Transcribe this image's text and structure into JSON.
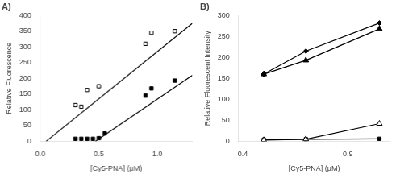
{
  "chart_data": [
    {
      "type": "scatter",
      "title": "A)",
      "xlabel": "[Cy5-PNA] (μM)",
      "ylabel": "Relative Fluorescence",
      "xlim": [
        0,
        1.3
      ],
      "ylim": [
        0,
        400
      ],
      "xticks": [
        {
          "value": 0,
          "label": "0.0"
        },
        0.5,
        {
          "value": 1.0,
          "label": "1.0"
        }
      ],
      "yticks": [
        0,
        50,
        100,
        150,
        200,
        250,
        300,
        350,
        400
      ],
      "grid": false,
      "series": [
        {
          "x": [
            0.05,
            1.3
          ],
          "values": [
            0,
            375
          ],
          "color": "black",
          "marker": "none",
          "line_style": "solid"
        },
        {
          "x": [
            0.47,
            1.3
          ],
          "values": [
            0,
            210
          ],
          "color": "black",
          "marker": "none",
          "line_style": "solid"
        },
        {
          "x": [
            0.3,
            0.35,
            0.4,
            0.5,
            0.9,
            0.95,
            1.15
          ],
          "values": [
            115,
            110,
            163,
            175,
            310,
            345,
            350
          ],
          "color": "black",
          "marker": "open_square",
          "line_style": "none"
        },
        {
          "x": [
            0.3,
            0.35,
            0.4,
            0.45,
            0.5,
            0.55,
            0.9,
            0.95,
            1.15
          ],
          "values": [
            8,
            8,
            8,
            8,
            10,
            25,
            145,
            168,
            193
          ],
          "color": "black",
          "marker": "square",
          "line_style": "none"
        }
      ]
    },
    {
      "type": "line",
      "title": "B)",
      "xlabel": "[Cy5-PNA] (μM)",
      "ylabel": "Relative Fluorescent Intensity",
      "xlim": [
        0.38,
        1.1
      ],
      "ylim": [
        0,
        300
      ],
      "xticks": [
        0.4,
        0.9
      ],
      "yticks": [
        0,
        50,
        100,
        150,
        200,
        250,
        300
      ],
      "grid": false,
      "series": [
        {
          "x": [
            0.5,
            0.7,
            1.05
          ],
          "values": [
            160,
            215,
            282
          ],
          "color": "black",
          "marker": "diamond",
          "line_style": "solid"
        },
        {
          "x": [
            0.5,
            0.7,
            1.05
          ],
          "values": [
            160,
            193,
            268
          ],
          "color": "black",
          "marker": "triangle",
          "line_style": "solid"
        },
        {
          "x": [
            0.5,
            0.7,
            1.05
          ],
          "values": [
            3,
            5,
            42
          ],
          "color": "black",
          "marker": "open_triangle",
          "line_style": "solid"
        },
        {
          "x": [
            0.5,
            0.7,
            1.05
          ],
          "values": [
            4,
            5,
            6
          ],
          "color": "black",
          "marker": "square",
          "line_style": "solid"
        }
      ]
    }
  ]
}
